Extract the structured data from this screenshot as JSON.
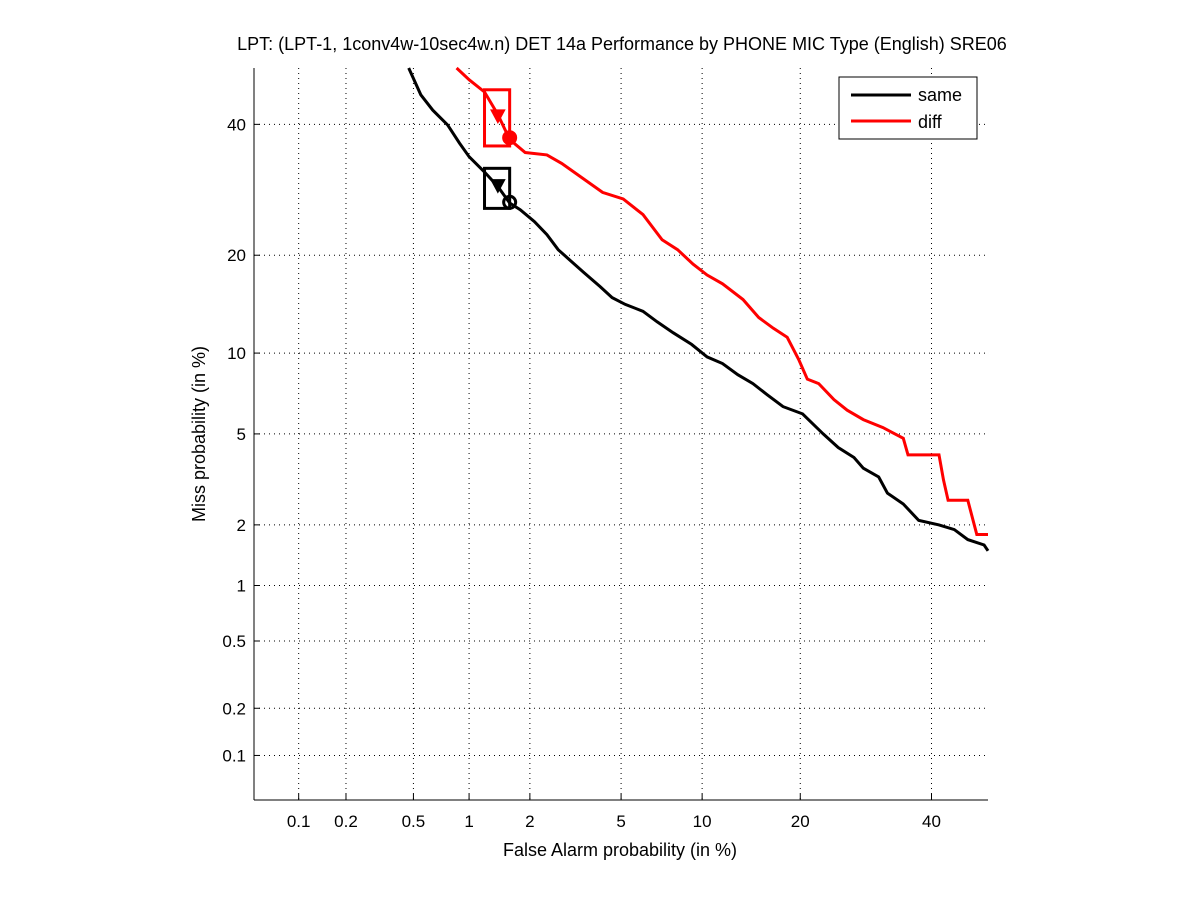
{
  "chart_data": {
    "type": "line",
    "title": "LPT: (LPT-1, 1conv4w-10sec4w.n) DET 14a Performance by PHONE MIC Type (English) SRE06",
    "xlabel": "False Alarm probability (in %)",
    "ylabel": "Miss probability (in %)",
    "scale": "normal-deviate",
    "xlim": [
      0.05,
      50
    ],
    "ylim": [
      0.05,
      50
    ],
    "grid": true,
    "legend_position": "top-right",
    "xticks": [
      0.1,
      0.2,
      0.5,
      1,
      2,
      5,
      10,
      20,
      40
    ],
    "xtick_labels": [
      "0.1",
      "0.2",
      "0.5",
      "1",
      "2",
      "5",
      "10",
      "20",
      "40"
    ],
    "yticks": [
      0.1,
      0.2,
      0.5,
      1,
      2,
      5,
      10,
      20,
      40
    ],
    "ytick_labels": [
      "0.1",
      "0.2",
      "0.5",
      "1",
      "2",
      "5",
      "10",
      "20",
      "40"
    ],
    "series": [
      {
        "name": "same",
        "color": "#000000",
        "points": [
          [
            0.47,
            50
          ],
          [
            0.55,
            45.2
          ],
          [
            0.64,
            42.5
          ],
          [
            0.77,
            39.9
          ],
          [
            0.89,
            36.8
          ],
          [
            1.0,
            34.5
          ],
          [
            1.2,
            32
          ],
          [
            1.4,
            29.7
          ],
          [
            1.6,
            27.2
          ],
          [
            1.8,
            26.2
          ],
          [
            2.1,
            24.5
          ],
          [
            2.4,
            22.7
          ],
          [
            2.7,
            20.7
          ],
          [
            3.1,
            19.2
          ],
          [
            3.5,
            17.9
          ],
          [
            4.1,
            16.3
          ],
          [
            4.6,
            15.1
          ],
          [
            5.2,
            14.4
          ],
          [
            6.1,
            13.7
          ],
          [
            6.9,
            12.7
          ],
          [
            7.9,
            11.7
          ],
          [
            9.2,
            10.7
          ],
          [
            10.4,
            9.7
          ],
          [
            11.7,
            9.2
          ],
          [
            13.1,
            8.4
          ],
          [
            14.6,
            7.8
          ],
          [
            16.1,
            7.1
          ],
          [
            17.9,
            6.4
          ],
          [
            20.3,
            6.0
          ],
          [
            23,
            5.0
          ],
          [
            25.1,
            4.4
          ],
          [
            27.4,
            4.0
          ],
          [
            28.8,
            3.6
          ],
          [
            31.2,
            3.3
          ],
          [
            32.6,
            2.8
          ],
          [
            35.2,
            2.5
          ],
          [
            37.8,
            2.1
          ],
          [
            41.3,
            2.0
          ],
          [
            44,
            1.9
          ],
          [
            46.4,
            1.7
          ],
          [
            49.3,
            1.6
          ],
          [
            50,
            1.5
          ]
        ],
        "actual_marker": [
          1.4,
          29.7
        ],
        "min_marker": [
          1.6,
          27.3
        ],
        "confidence_box": {
          "x": [
            1.2,
            1.6
          ],
          "y": [
            26.4,
            32.6
          ]
        }
      },
      {
        "name": "diff",
        "color": "#ff0000",
        "points": [
          [
            0.86,
            50
          ],
          [
            1.0,
            47.9
          ],
          [
            1.2,
            45.7
          ],
          [
            1.4,
            41.7
          ],
          [
            1.6,
            37.4
          ],
          [
            1.9,
            35.2
          ],
          [
            2.4,
            34.8
          ],
          [
            2.8,
            33.4
          ],
          [
            3.4,
            31.2
          ],
          [
            4.2,
            28.8
          ],
          [
            5.1,
            27.8
          ],
          [
            6.1,
            25.5
          ],
          [
            7.2,
            22
          ],
          [
            8.2,
            20.7
          ],
          [
            9.3,
            18.9
          ],
          [
            10.4,
            17.6
          ],
          [
            11.7,
            16.6
          ],
          [
            13.6,
            14.9
          ],
          [
            15.2,
            13.1
          ],
          [
            16.8,
            12.1
          ],
          [
            18.4,
            11.3
          ],
          [
            19.8,
            9.5
          ],
          [
            20.9,
            8.1
          ],
          [
            22.4,
            7.8
          ],
          [
            24.5,
            6.8
          ],
          [
            26.4,
            6.2
          ],
          [
            28.8,
            5.7
          ],
          [
            31.9,
            5.3
          ],
          [
            35.2,
            4.8
          ],
          [
            36,
            4.1
          ],
          [
            41.3,
            4.1
          ],
          [
            42.1,
            3.2
          ],
          [
            42.9,
            2.6
          ],
          [
            46.4,
            2.6
          ],
          [
            48,
            1.8
          ],
          [
            50,
            1.8
          ]
        ],
        "actual_marker": [
          1.4,
          41.3
        ],
        "min_marker": [
          1.6,
          37.7
        ],
        "confidence_box": {
          "x": [
            1.2,
            1.6
          ],
          "y": [
            36.3,
            46.1
          ]
        }
      }
    ]
  }
}
